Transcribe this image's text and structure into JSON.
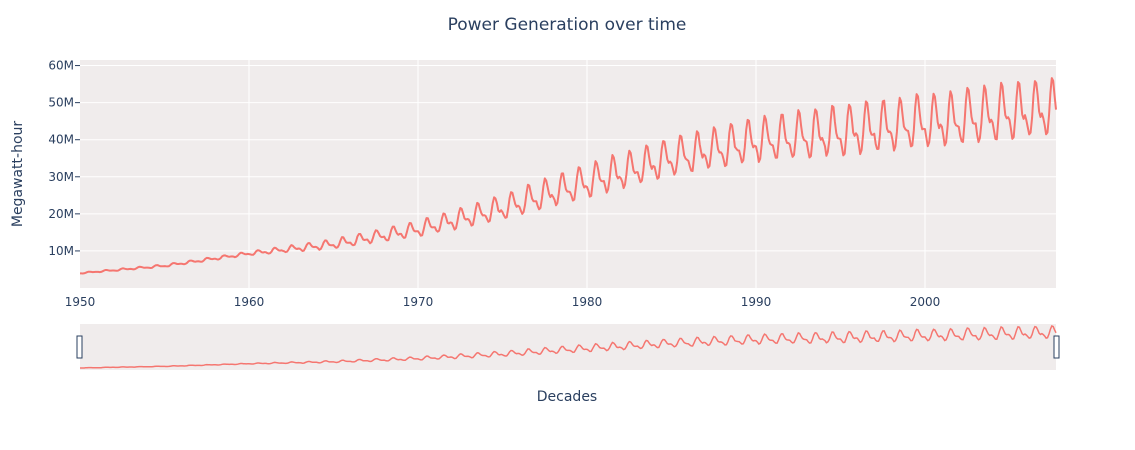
{
  "chart_data": {
    "type": "line",
    "title": "Power Generation over time",
    "xlabel": "Decades",
    "ylabel": "Megawatt-hour",
    "x_range": [
      1950,
      2007.75
    ],
    "ylim": [
      0,
      61500000
    ],
    "x_ticks": [
      1950,
      1960,
      1970,
      1980,
      1990,
      2000
    ],
    "y_ticks": [
      {
        "value": 10000000,
        "label": "10M"
      },
      {
        "value": 20000000,
        "label": "20M"
      },
      {
        "value": 30000000,
        "label": "30M"
      },
      {
        "value": 40000000,
        "label": "40M"
      },
      {
        "value": 50000000,
        "label": "50M"
      },
      {
        "value": 60000000,
        "label": "60M"
      }
    ],
    "grid": true,
    "range_slider": true,
    "series": [
      {
        "color": "#f57670",
        "x": [
          1950,
          1955,
          1960,
          1965,
          1970,
          1975,
          1980,
          1985,
          1990,
          1995,
          2000,
          2005,
          2007.75
        ],
        "trend_y": [
          4000000,
          6000000,
          9300000,
          11800000,
          15800000,
          21500000,
          28500000,
          35000000,
          39500000,
          42000000,
          44500000,
          47000000,
          48500000
        ],
        "seasonal_amplitude_y": [
          200000,
          400000,
          600000,
          1500000,
          2500000,
          4000000,
          5500000,
          6000000,
          7000000,
          8000000,
          8500000,
          9000000,
          9000000
        ]
      }
    ]
  }
}
